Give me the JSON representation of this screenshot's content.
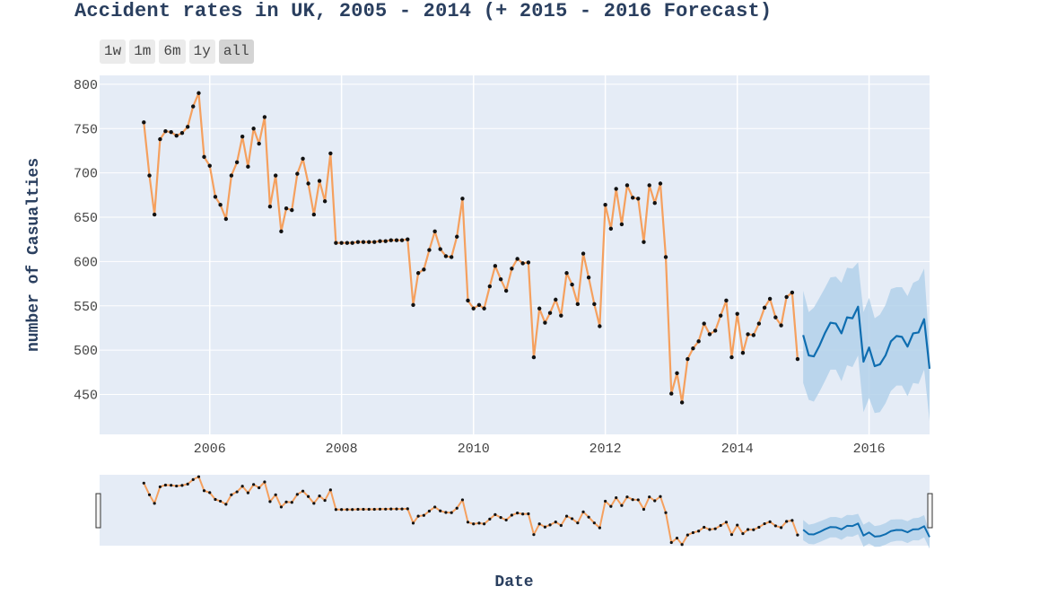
{
  "title": "Accident rates in UK, 2005 - 2014 (+ 2015 - 2016 Forecast)",
  "range_buttons": [
    {
      "label": "1w",
      "active": false
    },
    {
      "label": "1m",
      "active": false
    },
    {
      "label": "6m",
      "active": false
    },
    {
      "label": "1y",
      "active": false
    },
    {
      "label": "all",
      "active": true
    }
  ],
  "chart_data": {
    "type": "line",
    "title": "Accident rates in UK, 2005 - 2014 (+ 2015 - 2016 Forecast)",
    "xlabel": "Date",
    "ylabel": "number of Casualties",
    "x_range": [
      "2004-05-01",
      "2016-12-01"
    ],
    "ylim": [
      405,
      810
    ],
    "x_ticks": [
      "2006",
      "2008",
      "2010",
      "2012",
      "2014",
      "2016"
    ],
    "y_ticks": [
      450,
      500,
      550,
      600,
      650,
      700,
      750,
      800
    ],
    "grid": true,
    "legend": "none",
    "rangeslider": true,
    "colors": {
      "history": "#f5a05e",
      "markers": "#111111",
      "forecast": "#0e6db0",
      "band": "#b3d1ea",
      "plot_bg": "#e5ecf6",
      "grid": "#ffffff"
    },
    "series": [
      {
        "start": "2005-01",
        "markers": true,
        "values": [
          757,
          697,
          653,
          738,
          747,
          746,
          742,
          745,
          752,
          775,
          790,
          718,
          708,
          673,
          664,
          648,
          697,
          712,
          741,
          707,
          750,
          733,
          763,
          662,
          697,
          634,
          660,
          658,
          699,
          716,
          688,
          653,
          691,
          668,
          722,
          621,
          621,
          621,
          621,
          622,
          622,
          622,
          622,
          623,
          623,
          624,
          624,
          624,
          625,
          551,
          587,
          591,
          613,
          634,
          614,
          606,
          605,
          628,
          671,
          556,
          547,
          551,
          547,
          572,
          595,
          580,
          567,
          592,
          603,
          598,
          599,
          492,
          547,
          531,
          542,
          557,
          539,
          587,
          574,
          552,
          609,
          582,
          552,
          527,
          664,
          637,
          682,
          642,
          686,
          672,
          671,
          622,
          686,
          666,
          688,
          605,
          451,
          474,
          441,
          490,
          502,
          510,
          530,
          518,
          522,
          539,
          556,
          492,
          541,
          497,
          518,
          517,
          530,
          548,
          558,
          537,
          528,
          560,
          565,
          490
        ]
      },
      {
        "start": "2015-01",
        "markers": false,
        "values": [
          517,
          494,
          493,
          505,
          519,
          531,
          530,
          519,
          537,
          536,
          549,
          487,
          503,
          482,
          484,
          494,
          510,
          516,
          515,
          504,
          519,
          520,
          535,
          479
        ],
        "upper": [
          567,
          543,
          548,
          559,
          570,
          582,
          583,
          576,
          593,
          592,
          599,
          543,
          559,
          536,
          540,
          551,
          569,
          571,
          571,
          561,
          576,
          579,
          592,
          500
        ],
        "lower": [
          463,
          444,
          442,
          453,
          465,
          478,
          478,
          465,
          483,
          481,
          494,
          430,
          446,
          429,
          430,
          440,
          454,
          460,
          460,
          448,
          463,
          462,
          478,
          420
        ]
      }
    ]
  }
}
